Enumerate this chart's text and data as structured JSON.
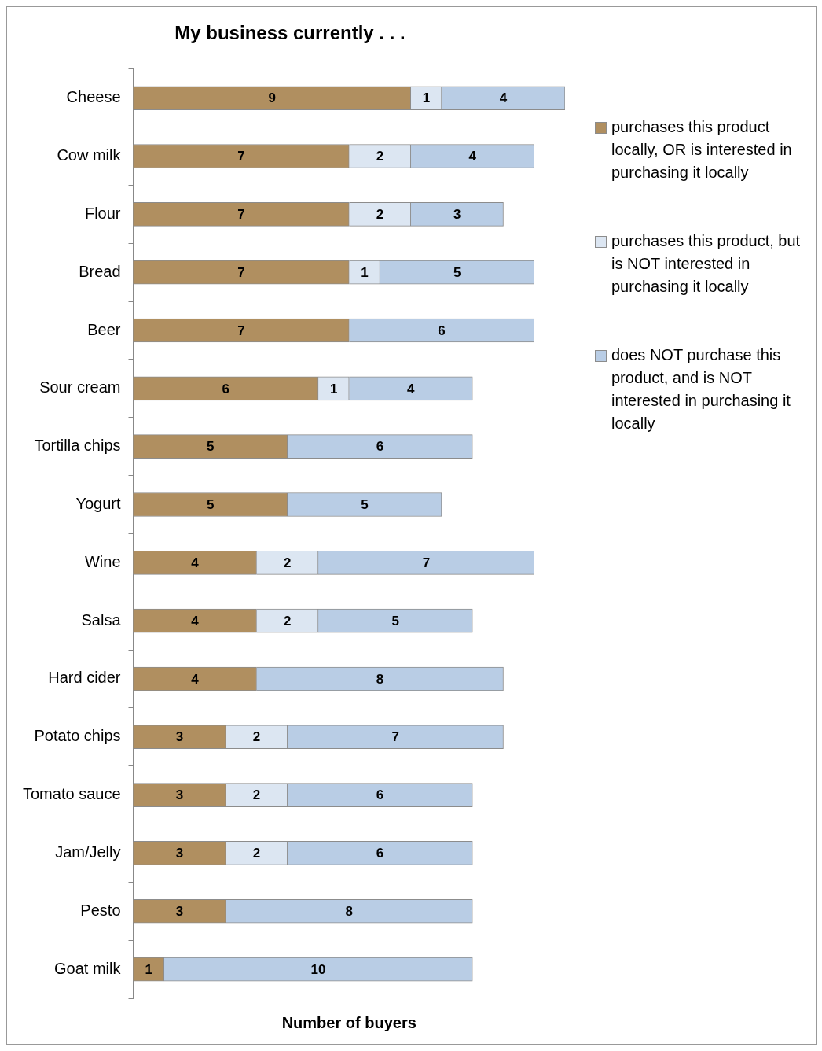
{
  "chart_data": {
    "type": "bar",
    "orientation": "horizontal",
    "stacked": true,
    "title": "My business currently . . .",
    "xlabel": "Number of buyers",
    "categories": [
      "Cheese",
      "Cow milk",
      "Flour",
      "Bread",
      "Beer",
      "Sour cream",
      "Tortilla chips",
      "Yogurt",
      "Wine",
      "Salsa",
      "Hard cider",
      "Potato chips",
      "Tomato sauce",
      "Jam/Jelly",
      "Pesto",
      "Goat milk"
    ],
    "series": [
      {
        "name": "purchases this product locally, OR is interested in purchasing it locally",
        "color": "#b08f60",
        "values": [
          9,
          7,
          7,
          7,
          7,
          6,
          5,
          5,
          4,
          4,
          4,
          3,
          3,
          3,
          3,
          1
        ]
      },
      {
        "name": "purchases this product, but is NOT interested in purchasing it locally",
        "color": "#dce6f2",
        "values": [
          1,
          2,
          2,
          1,
          null,
          1,
          null,
          null,
          2,
          2,
          null,
          2,
          2,
          2,
          null,
          null
        ]
      },
      {
        "name": "does NOT purchase this product, and is NOT interested in purchasing it locally",
        "color": "#b9cde5",
        "values": [
          4,
          4,
          3,
          5,
          6,
          4,
          6,
          5,
          7,
          5,
          8,
          7,
          6,
          6,
          8,
          10
        ]
      }
    ],
    "data_labels": true,
    "grid": false,
    "legend": "right",
    "tick_labels": "y"
  }
}
